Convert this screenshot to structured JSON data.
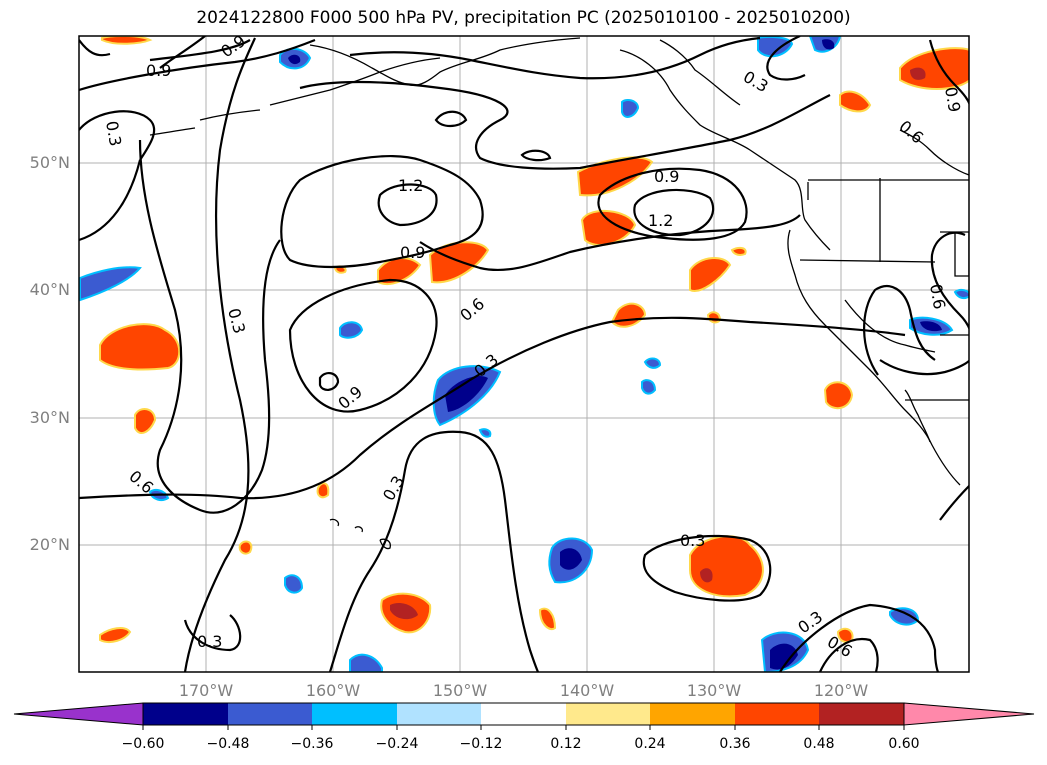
{
  "title": "2024122800 F000 500 hPa PV, precipitation PC (2025010100 - 2025010200)",
  "lat_labels": [
    "50°N",
    "40°N",
    "30°N",
    "20°N"
  ],
  "lon_labels": [
    "170°W",
    "160°W",
    "150°W",
    "140°W",
    "130°W",
    "120°W"
  ],
  "contour_labels": [
    "0.9",
    "0.9",
    "0.3",
    "0.3",
    "0.6",
    "0.3",
    "1.2",
    "0.9",
    "1.2",
    "0.9",
    "0.6",
    "0.9",
    "0.3",
    "0.3",
    "0.6",
    "0.3",
    "0.3",
    "0.6",
    "0.3",
    "0.9",
    "0.6"
  ],
  "colorbar": {
    "ticks": [
      "−0.60",
      "−0.48",
      "−0.36",
      "−0.24",
      "−0.12",
      "0.12",
      "0.24",
      "0.36",
      "0.48",
      "0.60"
    ],
    "colors": [
      "#9932cc",
      "#00008b",
      "#3b5bd1",
      "#00bfff",
      "#b0e2ff",
      "#ffffff",
      "#ffe98c",
      "#ffa500",
      "#ff4500",
      "#b22222",
      "#ff88aa"
    ]
  }
}
